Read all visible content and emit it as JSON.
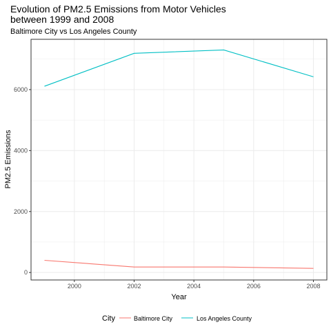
{
  "chart_data": {
    "type": "line",
    "title": "Evolution of PM2.5 Emissions from Motor Vehicles between 1999 and 2008",
    "subtitle": "Baltimore City vs Los Angeles County",
    "xlabel": "Year",
    "ylabel": "PM2.5 Emissions",
    "x": [
      1999,
      2002,
      2005,
      2008
    ],
    "xlim": [
      1998.55,
      2008.45
    ],
    "ylim": [
      -245,
      7650
    ],
    "xticks": [
      2000,
      2002,
      2004,
      2006,
      2008
    ],
    "yticks": [
      0,
      2000,
      4000,
      6000
    ],
    "grid": true,
    "legend": {
      "title": "City",
      "position": "bottom"
    },
    "series": [
      {
        "name": "Baltimore City",
        "color": "#F8766D",
        "values": [
          400,
          180,
          180,
          135
        ]
      },
      {
        "name": "Los Angeles County",
        "color": "#00BFC4",
        "values": [
          6110,
          7190,
          7300,
          6420
        ]
      }
    ]
  }
}
